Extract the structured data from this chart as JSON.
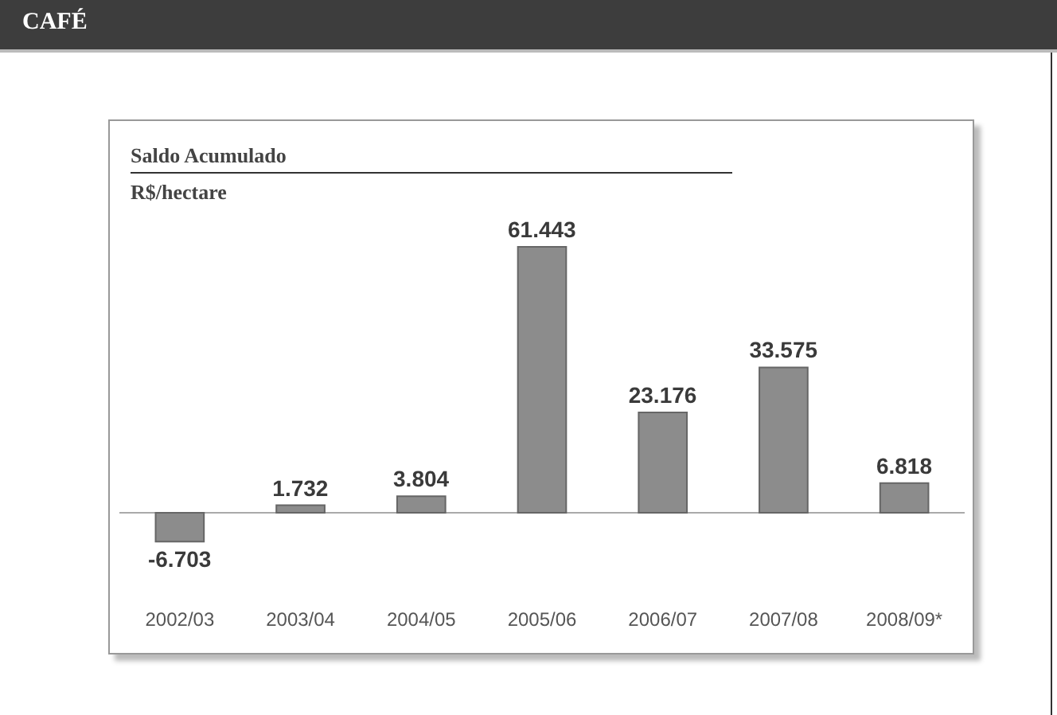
{
  "chart_data": {
    "type": "bar",
    "title": "CAFÉ",
    "subtitle": "Saldo Acumulado",
    "ylabel": "R$/hectare",
    "categories": [
      "2002/03",
      "2003/04",
      "2004/05",
      "2005/06",
      "2006/07",
      "2007/08",
      "2008/09*"
    ],
    "values": [
      -6703,
      1732,
      3804,
      61443,
      23176,
      33575,
      6818
    ],
    "value_labels": [
      "-6.703",
      "1.732",
      "3.804",
      "61.443",
      "23.176",
      "33.575",
      "6.818"
    ],
    "color": "#8c8c8c"
  }
}
